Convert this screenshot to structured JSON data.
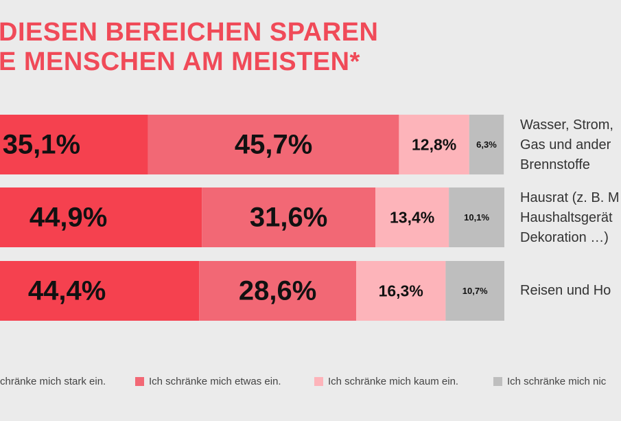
{
  "title_lines": [
    "DIESEN BEREICHEN SPAREN",
    "E MENSCHEN AM MEISTEN*"
  ],
  "chart_data": {
    "type": "bar",
    "orientation": "horizontal",
    "stacked": true,
    "xlim": [
      0,
      100
    ],
    "categories": [
      "Wasser, Strom,\nGas und ander\nBrennstoffe",
      "Hausrat (z. B. M\nHaushaltsgerät\nDekoration …)",
      "Reisen und Ho"
    ],
    "series": [
      {
        "name": "chränke mich stark ein.",
        "color": "#f5414f",
        "values": [
          35.1,
          44.9,
          44.4
        ],
        "labels": [
          "35,1%",
          "44,9%",
          "44,4%"
        ]
      },
      {
        "name": "Ich schränke mich etwas ein.",
        "color": "#f26875",
        "values": [
          45.7,
          31.6,
          28.6
        ],
        "labels": [
          "45,7%",
          "31,6%",
          "28,6%"
        ]
      },
      {
        "name": "Ich schränke mich kaum ein.",
        "color": "#fdb4ba",
        "values": [
          12.8,
          13.4,
          16.3
        ],
        "labels": [
          "12,8%",
          "13,4%",
          "16,3%"
        ]
      },
      {
        "name": "Ich schränke mich nic",
        "color": "#bebebe",
        "values": [
          6.3,
          10.1,
          10.7
        ],
        "labels": [
          "6,3%",
          "10,1%",
          "10,7%"
        ]
      }
    ],
    "legend_position": "bottom",
    "grid": false
  }
}
